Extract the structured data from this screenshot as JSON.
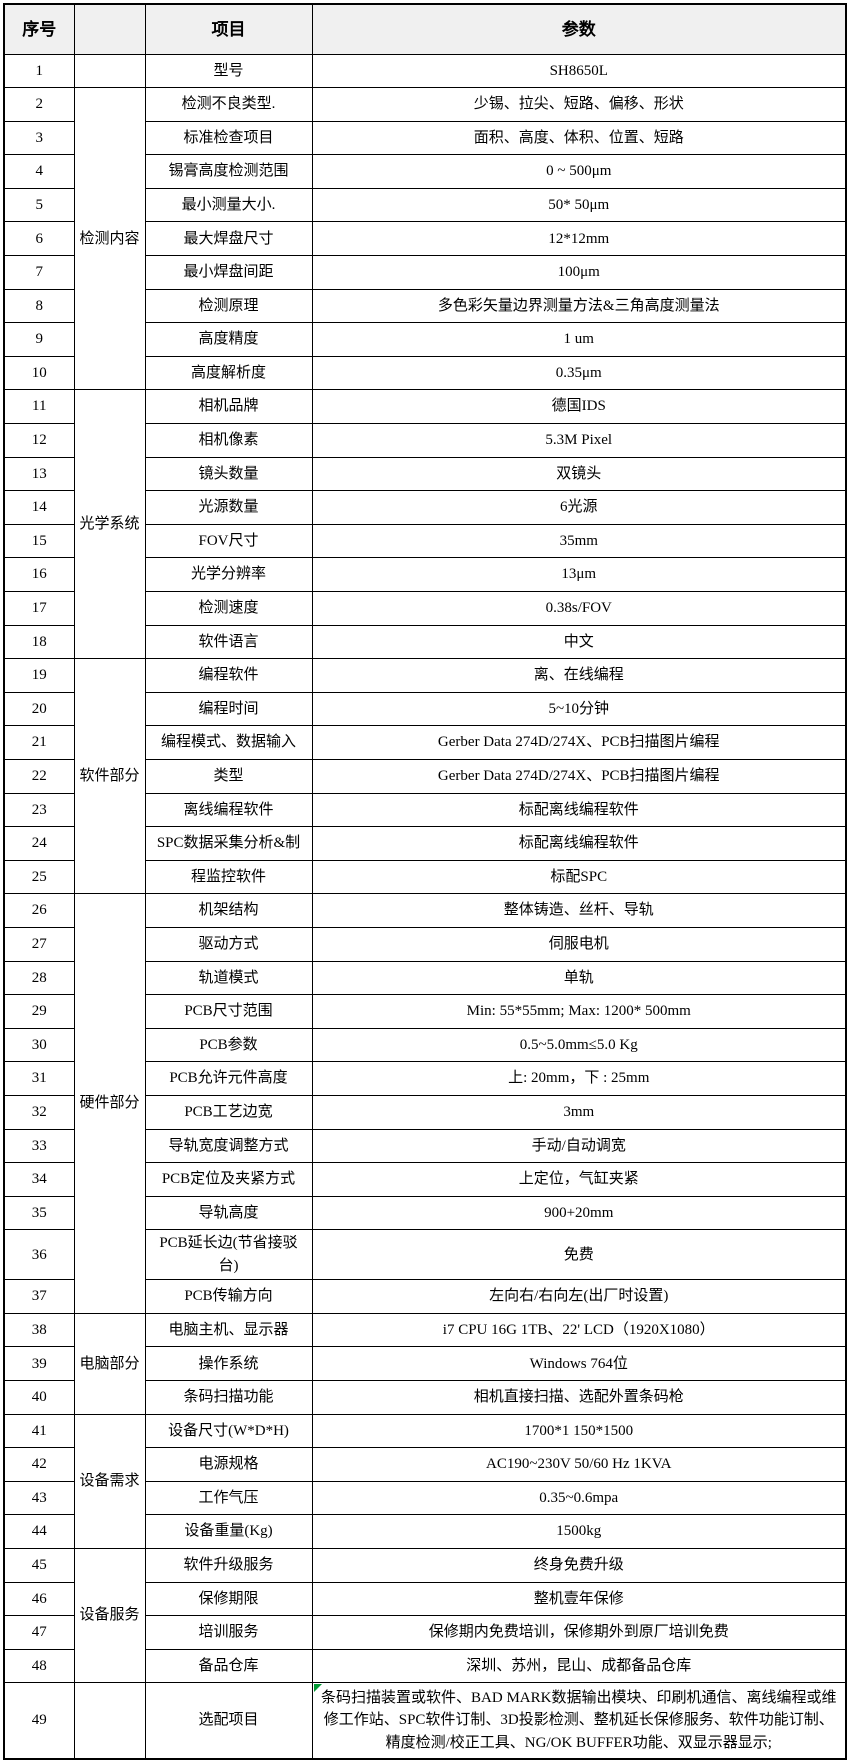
{
  "colors": {
    "header_bg": "#f0f0f0",
    "border": "#000000",
    "text": "#000000",
    "note_flag_green": "#009933"
  },
  "table": {
    "headers": {
      "no": "序号",
      "group": "",
      "item": "项目",
      "param": "参数"
    },
    "groups": [
      {
        "label": "",
        "start": 1,
        "span": 1
      },
      {
        "label": "检测内容",
        "start": 2,
        "span": 9
      },
      {
        "label": "光学系统",
        "start": 11,
        "span": 8
      },
      {
        "label": "软件部分",
        "start": 19,
        "span": 7
      },
      {
        "label": "硬件部分",
        "start": 26,
        "span": 12
      },
      {
        "label": "电脑部分",
        "start": 38,
        "span": 3
      },
      {
        "label": "设备需求",
        "start": 41,
        "span": 4
      },
      {
        "label": "设备服务",
        "start": 45,
        "span": 4
      },
      {
        "label": "",
        "start": 49,
        "span": 1
      }
    ],
    "rows": [
      {
        "no": "1",
        "item": "型号",
        "value": "SH8650L"
      },
      {
        "no": "2",
        "item": "检测不良类型.",
        "value": "少锡、拉尖、短路、偏移、形状"
      },
      {
        "no": "3",
        "item": "标准检查项目",
        "value": "面积、高度、体积、位置、短路"
      },
      {
        "no": "4",
        "item": "锡膏高度检测范围",
        "value": "0 ~ 500μm"
      },
      {
        "no": "5",
        "item": "最小测量大小.",
        "value": "50* 50μm"
      },
      {
        "no": "6",
        "item": "最大焊盘尺寸",
        "value": "12*12mm"
      },
      {
        "no": "7",
        "item": "最小焊盘间距",
        "value": "100μm"
      },
      {
        "no": "8",
        "item": "检测原理",
        "value": "多色彩矢量边界测量方法&三角高度测量法"
      },
      {
        "no": "9",
        "item": "高度精度",
        "value": "1 um"
      },
      {
        "no": "10",
        "item": "高度解析度",
        "value": "0.35μm"
      },
      {
        "no": "11",
        "item": "相机品牌",
        "value": "德国IDS"
      },
      {
        "no": "12",
        "item": "相机像素",
        "value": "5.3M Pixel"
      },
      {
        "no": "13",
        "item": "镜头数量",
        "value": "双镜头"
      },
      {
        "no": "14",
        "item": "光源数量",
        "value": "6光源"
      },
      {
        "no": "15",
        "item": "FOV尺寸",
        "value": "35mm"
      },
      {
        "no": "16",
        "item": "光学分辨率",
        "value": "13μm"
      },
      {
        "no": "17",
        "item": "检测速度",
        "value": "0.38s/FOV"
      },
      {
        "no": "18",
        "item": "软件语言",
        "value": "中文"
      },
      {
        "no": "19",
        "item": "编程软件",
        "value": "离、在线编程"
      },
      {
        "no": "20",
        "item": "编程时间",
        "value": "5~10分钟"
      },
      {
        "no": "21",
        "item": "编程模式、数据输入",
        "value": "Gerber Data 274D/274X、PCB扫描图片编程"
      },
      {
        "no": "22",
        "item": "类型",
        "value": "Gerber Data 274D/274X、PCB扫描图片编程"
      },
      {
        "no": "23",
        "item": "离线编程软件",
        "value": "标配离线编程软件"
      },
      {
        "no": "24",
        "item": "SPC数据采集分析&制",
        "value": "标配离线编程软件"
      },
      {
        "no": "25",
        "item": "程监控软件",
        "value": "标配SPC"
      },
      {
        "no": "26",
        "item": "机架结构",
        "value": "整体铸造、丝杆、导轨"
      },
      {
        "no": "27",
        "item": "驱动方式",
        "value": "伺服电机"
      },
      {
        "no": "28",
        "item": "轨道模式",
        "value": "单轨"
      },
      {
        "no": "29",
        "item": "PCB尺寸范围",
        "value": "Min: 55*55mm; Max: 1200* 500mm"
      },
      {
        "no": "30",
        "item": "PCB参数",
        "value": "0.5~5.0mm≤5.0 Kg"
      },
      {
        "no": "31",
        "item": "PCB允许元件高度",
        "value": "上: 20mm，下 : 25mm"
      },
      {
        "no": "32",
        "item": "PCB工艺边宽",
        "value": "3mm"
      },
      {
        "no": "33",
        "item": "导轨宽度调整方式",
        "value": "手动/自动调宽"
      },
      {
        "no": "34",
        "item": "PCB定位及夹紧方式",
        "value": "上定位，气缸夹紧"
      },
      {
        "no": "35",
        "item": "导轨高度",
        "value": "900+20mm"
      },
      {
        "no": "36",
        "item": "PCB延长边(节省接驳台)",
        "value": "免费"
      },
      {
        "no": "37",
        "item": "PCB传输方向",
        "value": "左向右/右向左(出厂时设置)"
      },
      {
        "no": "38",
        "item": "电脑主机、显示器",
        "value": "i7 CPU 16G 1TB、22' LCD（1920X1080）"
      },
      {
        "no": "39",
        "item": "操作系统",
        "value": "Windows 764位"
      },
      {
        "no": "40",
        "item": "条码扫描功能",
        "value": "相机直接扫描、选配外置条码枪"
      },
      {
        "no": "41",
        "item": "设备尺寸(W*D*H)",
        "value": "1700*1 150*1500"
      },
      {
        "no": "42",
        "item": "电源规格",
        "value": "AC190~230V 50/60 Hz 1KVA"
      },
      {
        "no": "43",
        "item": "工作气压",
        "value": "0.35~0.6mpa"
      },
      {
        "no": "44",
        "item": "设备重量(Kg)",
        "value": "1500kg"
      },
      {
        "no": "45",
        "item": "软件升级服务",
        "value": "终身免费升级"
      },
      {
        "no": "46",
        "item": "保修期限",
        "value": "整机壹年保修"
      },
      {
        "no": "47",
        "item": "培训服务",
        "value": "保修期内免费培训，保修期外到原厂培训免费"
      },
      {
        "no": "48",
        "item": "备品仓库",
        "value": "深圳、苏州，昆山、成都备品仓库"
      },
      {
        "no": "49",
        "item": "选配项目",
        "value": "条码扫描装置或软件、BAD MARK数据输出模块、印刷机通信、离线编程或维修工作站、SPC软件订制、3D投影检测、整机延长保修服务、软件功能订制、精度检测/校正工具、NG/OK BUFFER功能、双显示器显示;",
        "tall": true,
        "flag": true
      }
    ]
  }
}
